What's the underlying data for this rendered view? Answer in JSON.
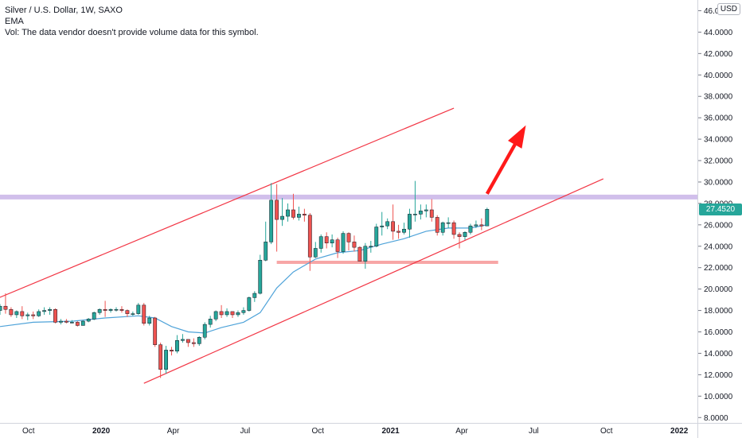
{
  "legend": {
    "title": "Silver / U.S. Dollar, 1W, SAXO",
    "indicator": "EMA",
    "volume_note": "Vol: The data vendor doesn't provide volume data for this symbol."
  },
  "price_axis": {
    "currency": "USD",
    "ticks": [
      "46.0000",
      "44.0000",
      "42.0000",
      "40.0000",
      "38.0000",
      "36.0000",
      "34.0000",
      "32.0000",
      "30.0000",
      "28.0000",
      "26.0000",
      "24.0000",
      "22.0000",
      "20.0000",
      "18.0000",
      "16.0000",
      "14.0000",
      "12.0000",
      "10.0000",
      "8.0000"
    ],
    "last_price": "27.4520"
  },
  "time_axis": {
    "ticks": [
      "Oct",
      "2020",
      "Apr",
      "Jul",
      "Oct",
      "2021",
      "Apr",
      "Jul",
      "Oct",
      "2022"
    ]
  },
  "colors": {
    "up": "#26a69a",
    "down": "#ef5350",
    "ema": "#4fa3d9",
    "channel": "#f23645",
    "resistance": "#c9b4e8",
    "support": "#f7a6a6",
    "arrow": "#ff1a1a"
  },
  "chart_data": {
    "type": "candlestick",
    "title": "Silver / U.S. Dollar, 1W, SAXO",
    "ylim": [
      7.5,
      47
    ],
    "x_range": [
      "2019-08-26",
      "2022-01-24"
    ],
    "candles": [
      {
        "t": "2019-08-26",
        "o": 18.0,
        "h": 18.6,
        "l": 17.6,
        "c": 18.4
      },
      {
        "t": "2019-09-02",
        "o": 18.4,
        "h": 19.6,
        "l": 17.7,
        "c": 18.1
      },
      {
        "t": "2019-09-09",
        "o": 18.1,
        "h": 18.3,
        "l": 17.4,
        "c": 17.6
      },
      {
        "t": "2019-09-16",
        "o": 17.6,
        "h": 18.0,
        "l": 17.3,
        "c": 17.9
      },
      {
        "t": "2019-09-23",
        "o": 17.9,
        "h": 18.4,
        "l": 17.2,
        "c": 17.5
      },
      {
        "t": "2019-09-30",
        "o": 17.5,
        "h": 17.8,
        "l": 17.1,
        "c": 17.6
      },
      {
        "t": "2019-10-07",
        "o": 17.6,
        "h": 17.9,
        "l": 17.2,
        "c": 17.5
      },
      {
        "t": "2019-10-14",
        "o": 17.5,
        "h": 18.1,
        "l": 17.4,
        "c": 17.9
      },
      {
        "t": "2019-10-21",
        "o": 17.9,
        "h": 18.3,
        "l": 17.6,
        "c": 18.0
      },
      {
        "t": "2019-10-28",
        "o": 18.0,
        "h": 18.3,
        "l": 17.6,
        "c": 18.1
      },
      {
        "t": "2019-11-04",
        "o": 18.1,
        "h": 18.2,
        "l": 16.8,
        "c": 16.9
      },
      {
        "t": "2019-11-11",
        "o": 16.9,
        "h": 17.2,
        "l": 16.7,
        "c": 17.0
      },
      {
        "t": "2019-11-18",
        "o": 17.0,
        "h": 17.2,
        "l": 16.8,
        "c": 16.9
      },
      {
        "t": "2019-11-25",
        "o": 16.9,
        "h": 17.1,
        "l": 16.8,
        "c": 16.9
      },
      {
        "t": "2019-12-02",
        "o": 16.9,
        "h": 17.0,
        "l": 16.5,
        "c": 16.6
      },
      {
        "t": "2019-12-09",
        "o": 16.6,
        "h": 17.1,
        "l": 16.6,
        "c": 17.0
      },
      {
        "t": "2019-12-16",
        "o": 17.0,
        "h": 17.3,
        "l": 16.9,
        "c": 17.2
      },
      {
        "t": "2019-12-23",
        "o": 17.2,
        "h": 17.9,
        "l": 17.1,
        "c": 17.8
      },
      {
        "t": "2019-12-30",
        "o": 17.8,
        "h": 18.2,
        "l": 17.6,
        "c": 18.1
      },
      {
        "t": "2020-01-06",
        "o": 18.1,
        "h": 18.9,
        "l": 17.4,
        "c": 18.0
      },
      {
        "t": "2020-01-13",
        "o": 18.0,
        "h": 18.2,
        "l": 17.8,
        "c": 18.1
      },
      {
        "t": "2020-01-20",
        "o": 18.1,
        "h": 18.3,
        "l": 17.9,
        "c": 18.1
      },
      {
        "t": "2020-01-27",
        "o": 18.1,
        "h": 18.4,
        "l": 17.8,
        "c": 18.0
      },
      {
        "t": "2020-02-03",
        "o": 18.0,
        "h": 18.1,
        "l": 17.4,
        "c": 17.7
      },
      {
        "t": "2020-02-10",
        "o": 17.7,
        "h": 17.9,
        "l": 17.5,
        "c": 17.7
      },
      {
        "t": "2020-02-17",
        "o": 17.7,
        "h": 18.7,
        "l": 17.6,
        "c": 18.5
      },
      {
        "t": "2020-02-24",
        "o": 18.5,
        "h": 18.7,
        "l": 16.6,
        "c": 16.8
      },
      {
        "t": "2020-03-02",
        "o": 16.8,
        "h": 17.5,
        "l": 16.6,
        "c": 17.3
      },
      {
        "t": "2020-03-09",
        "o": 17.3,
        "h": 17.4,
        "l": 14.6,
        "c": 14.8
      },
      {
        "t": "2020-03-16",
        "o": 14.8,
        "h": 15.0,
        "l": 11.7,
        "c": 12.5
      },
      {
        "t": "2020-03-23",
        "o": 12.5,
        "h": 14.7,
        "l": 12.1,
        "c": 14.3
      },
      {
        "t": "2020-03-30",
        "o": 14.3,
        "h": 14.6,
        "l": 13.8,
        "c": 14.2
      },
      {
        "t": "2020-04-06",
        "o": 14.2,
        "h": 15.7,
        "l": 14.0,
        "c": 15.2
      },
      {
        "t": "2020-04-13",
        "o": 15.2,
        "h": 15.8,
        "l": 15.0,
        "c": 15.3
      },
      {
        "t": "2020-04-20",
        "o": 15.3,
        "h": 15.3,
        "l": 14.6,
        "c": 15.0
      },
      {
        "t": "2020-04-27",
        "o": 15.0,
        "h": 15.4,
        "l": 14.6,
        "c": 14.9
      },
      {
        "t": "2020-05-04",
        "o": 14.9,
        "h": 15.6,
        "l": 14.7,
        "c": 15.5
      },
      {
        "t": "2020-05-11",
        "o": 15.5,
        "h": 16.9,
        "l": 15.3,
        "c": 16.7
      },
      {
        "t": "2020-05-18",
        "o": 16.7,
        "h": 17.5,
        "l": 16.4,
        "c": 17.2
      },
      {
        "t": "2020-05-25",
        "o": 17.2,
        "h": 18.0,
        "l": 17.0,
        "c": 17.9
      },
      {
        "t": "2020-06-01",
        "o": 17.9,
        "h": 18.5,
        "l": 17.3,
        "c": 17.6
      },
      {
        "t": "2020-06-08",
        "o": 17.6,
        "h": 18.2,
        "l": 17.4,
        "c": 17.9
      },
      {
        "t": "2020-06-15",
        "o": 17.9,
        "h": 17.9,
        "l": 17.3,
        "c": 17.6
      },
      {
        "t": "2020-06-22",
        "o": 17.6,
        "h": 18.0,
        "l": 17.4,
        "c": 17.8
      },
      {
        "t": "2020-06-29",
        "o": 17.8,
        "h": 18.3,
        "l": 17.6,
        "c": 18.0
      },
      {
        "t": "2020-07-06",
        "o": 18.0,
        "h": 19.3,
        "l": 17.9,
        "c": 19.2
      },
      {
        "t": "2020-07-13",
        "o": 19.2,
        "h": 19.8,
        "l": 18.8,
        "c": 19.6
      },
      {
        "t": "2020-07-20",
        "o": 19.6,
        "h": 23.2,
        "l": 19.5,
        "c": 22.7
      },
      {
        "t": "2020-07-27",
        "o": 22.7,
        "h": 26.3,
        "l": 22.6,
        "c": 24.4
      },
      {
        "t": "2020-08-03",
        "o": 24.4,
        "h": 29.9,
        "l": 24.2,
        "c": 28.3
      },
      {
        "t": "2020-08-10",
        "o": 28.3,
        "h": 29.8,
        "l": 23.5,
        "c": 26.5
      },
      {
        "t": "2020-08-17",
        "o": 26.5,
        "h": 28.5,
        "l": 25.9,
        "c": 26.8
      },
      {
        "t": "2020-08-24",
        "o": 26.8,
        "h": 28.0,
        "l": 26.3,
        "c": 27.4
      },
      {
        "t": "2020-08-31",
        "o": 27.4,
        "h": 28.9,
        "l": 26.5,
        "c": 26.7
      },
      {
        "t": "2020-09-07",
        "o": 26.7,
        "h": 27.7,
        "l": 26.4,
        "c": 27.0
      },
      {
        "t": "2020-09-14",
        "o": 27.0,
        "h": 27.5,
        "l": 26.3,
        "c": 26.9
      },
      {
        "t": "2020-09-21",
        "o": 26.9,
        "h": 27.1,
        "l": 21.7,
        "c": 23.0
      },
      {
        "t": "2020-09-28",
        "o": 23.0,
        "h": 24.4,
        "l": 22.9,
        "c": 23.8
      },
      {
        "t": "2020-10-05",
        "o": 23.8,
        "h": 25.1,
        "l": 23.4,
        "c": 24.9
      },
      {
        "t": "2020-10-12",
        "o": 24.9,
        "h": 25.3,
        "l": 23.8,
        "c": 24.3
      },
      {
        "t": "2020-10-19",
        "o": 24.3,
        "h": 25.1,
        "l": 23.9,
        "c": 24.6
      },
      {
        "t": "2020-10-26",
        "o": 24.6,
        "h": 24.8,
        "l": 22.9,
        "c": 23.5
      },
      {
        "t": "2020-11-02",
        "o": 23.5,
        "h": 25.4,
        "l": 23.3,
        "c": 25.2
      },
      {
        "t": "2020-11-09",
        "o": 25.2,
        "h": 25.3,
        "l": 23.6,
        "c": 24.4
      },
      {
        "t": "2020-11-16",
        "o": 24.4,
        "h": 25.0,
        "l": 23.5,
        "c": 23.9
      },
      {
        "t": "2020-11-23",
        "o": 23.9,
        "h": 24.0,
        "l": 22.6,
        "c": 22.6
      },
      {
        "t": "2020-11-30",
        "o": 22.6,
        "h": 24.3,
        "l": 21.9,
        "c": 24.0
      },
      {
        "t": "2020-12-07",
        "o": 24.0,
        "h": 24.5,
        "l": 23.4,
        "c": 24.0
      },
      {
        "t": "2020-12-14",
        "o": 24.0,
        "h": 26.1,
        "l": 23.9,
        "c": 25.8
      },
      {
        "t": "2020-12-21",
        "o": 25.8,
        "h": 27.2,
        "l": 25.0,
        "c": 25.9
      },
      {
        "t": "2020-12-28",
        "o": 25.9,
        "h": 26.6,
        "l": 25.6,
        "c": 26.3
      },
      {
        "t": "2021-01-04",
        "o": 26.3,
        "h": 27.9,
        "l": 24.6,
        "c": 25.4
      },
      {
        "t": "2021-01-11",
        "o": 25.4,
        "h": 26.0,
        "l": 24.7,
        "c": 25.3
      },
      {
        "t": "2021-01-18",
        "o": 25.3,
        "h": 26.2,
        "l": 25.1,
        "c": 25.6
      },
      {
        "t": "2021-01-25",
        "o": 25.6,
        "h": 27.5,
        "l": 24.8,
        "c": 27.0
      },
      {
        "t": "2021-02-01",
        "o": 27.0,
        "h": 30.1,
        "l": 26.3,
        "c": 27.0
      },
      {
        "t": "2021-02-08",
        "o": 27.0,
        "h": 27.9,
        "l": 26.5,
        "c": 27.3
      },
      {
        "t": "2021-02-15",
        "o": 27.3,
        "h": 27.9,
        "l": 26.7,
        "c": 27.4
      },
      {
        "t": "2021-02-22",
        "o": 27.4,
        "h": 28.4,
        "l": 26.3,
        "c": 26.7
      },
      {
        "t": "2021-03-01",
        "o": 26.7,
        "h": 26.9,
        "l": 25.0,
        "c": 25.3
      },
      {
        "t": "2021-03-08",
        "o": 25.3,
        "h": 26.3,
        "l": 25.0,
        "c": 26.2
      },
      {
        "t": "2021-03-15",
        "o": 26.2,
        "h": 26.7,
        "l": 25.7,
        "c": 26.2
      },
      {
        "t": "2021-03-22",
        "o": 26.2,
        "h": 26.4,
        "l": 24.7,
        "c": 25.1
      },
      {
        "t": "2021-03-29",
        "o": 25.1,
        "h": 25.3,
        "l": 23.8,
        "c": 24.9
      },
      {
        "t": "2021-04-05",
        "o": 24.9,
        "h": 25.4,
        "l": 24.6,
        "c": 25.3
      },
      {
        "t": "2021-04-12",
        "o": 25.3,
        "h": 26.1,
        "l": 25.1,
        "c": 25.9
      },
      {
        "t": "2021-04-19",
        "o": 25.9,
        "h": 26.4,
        "l": 25.7,
        "c": 26.0
      },
      {
        "t": "2021-04-26",
        "o": 26.0,
        "h": 26.6,
        "l": 25.5,
        "c": 25.9
      },
      {
        "t": "2021-05-03",
        "o": 25.9,
        "h": 27.6,
        "l": 25.9,
        "c": 27.45
      }
    ],
    "ema": {
      "period": 21,
      "points": [
        {
          "t": "2019-08-26",
          "v": 16.5
        },
        {
          "t": "2019-10-07",
          "v": 16.9
        },
        {
          "t": "2019-11-25",
          "v": 17.0
        },
        {
          "t": "2020-01-06",
          "v": 17.3
        },
        {
          "t": "2020-02-17",
          "v": 17.5
        },
        {
          "t": "2020-03-09",
          "v": 17.3
        },
        {
          "t": "2020-03-30",
          "v": 16.5
        },
        {
          "t": "2020-04-20",
          "v": 16.0
        },
        {
          "t": "2020-05-11",
          "v": 15.9
        },
        {
          "t": "2020-06-01",
          "v": 16.4
        },
        {
          "t": "2020-06-29",
          "v": 16.9
        },
        {
          "t": "2020-07-20",
          "v": 17.8
        },
        {
          "t": "2020-08-10",
          "v": 20.1
        },
        {
          "t": "2020-08-31",
          "v": 21.6
        },
        {
          "t": "2020-09-28",
          "v": 22.8
        },
        {
          "t": "2020-10-26",
          "v": 23.4
        },
        {
          "t": "2020-11-23",
          "v": 23.6
        },
        {
          "t": "2020-12-21",
          "v": 24.2
        },
        {
          "t": "2021-01-18",
          "v": 24.7
        },
        {
          "t": "2021-02-15",
          "v": 25.4
        },
        {
          "t": "2021-03-15",
          "v": 25.7
        },
        {
          "t": "2021-04-12",
          "v": 25.7
        },
        {
          "t": "2021-05-03",
          "v": 26.0
        }
      ]
    },
    "drawings": {
      "channel_upper": [
        {
          "t": "2019-08-12",
          "v": 18.8
        },
        {
          "t": "2021-03-22",
          "v": 36.9
        }
      ],
      "channel_lower": [
        {
          "t": "2020-02-24",
          "v": 11.2
        },
        {
          "t": "2021-09-27",
          "v": 30.3
        }
      ],
      "resistance_level": 28.6,
      "support_segment": {
        "from": "2020-08-10",
        "to": "2021-05-17",
        "v": 22.5
      },
      "arrow": {
        "from": {
          "t": "2021-05-03",
          "v": 28.9
        },
        "to": {
          "t": "2021-06-21",
          "v": 35.3
        }
      }
    }
  }
}
